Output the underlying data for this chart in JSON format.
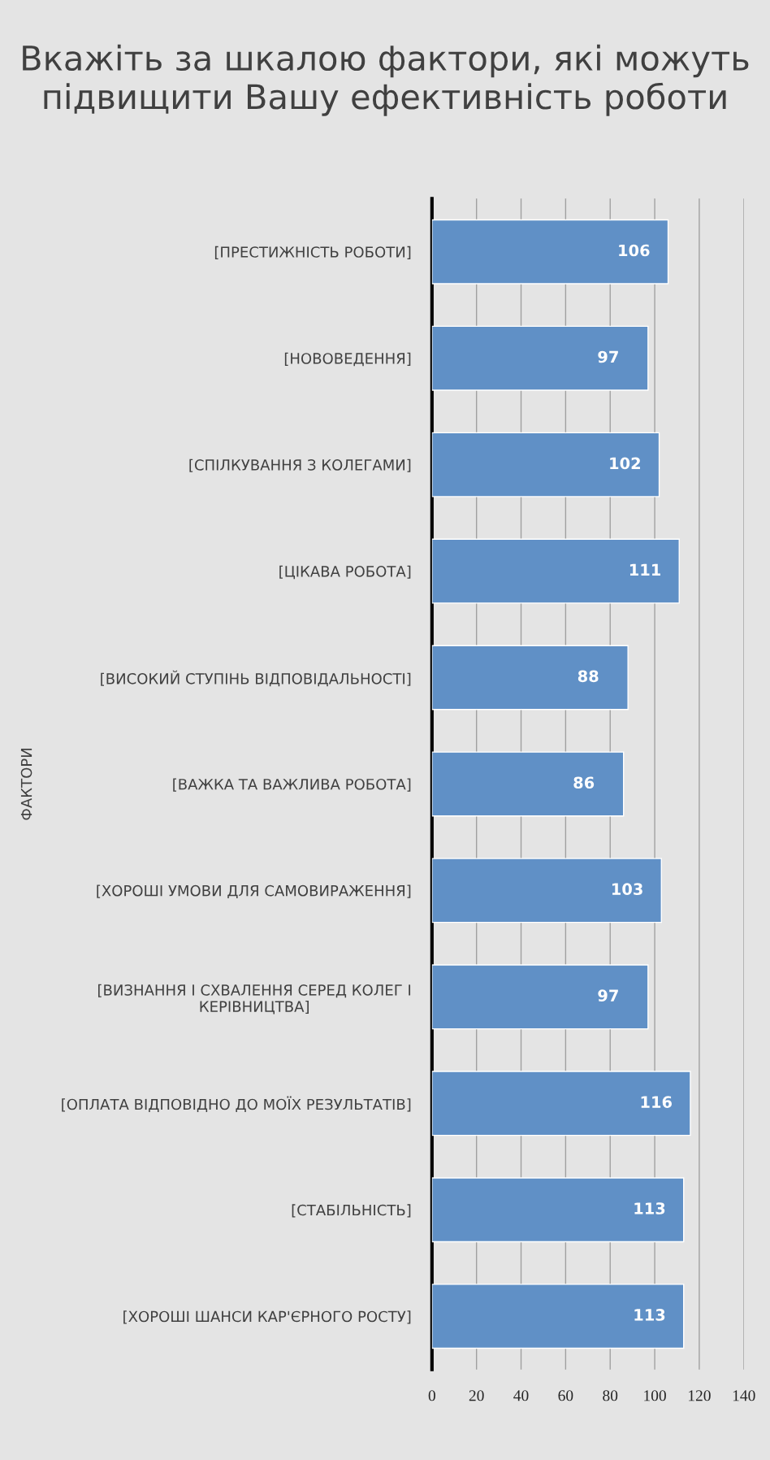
{
  "chart_data": {
    "type": "bar",
    "orientation": "horizontal",
    "title": "Вкажіть за шкалою фактори, які можуть підвищити Вашу ефективність роботи",
    "ylabel": "ФАКТОРИ",
    "categories": [
      "[ПРЕСТИЖНІСТЬ РОБОТИ]",
      "[НОВОВЕДЕННЯ]",
      "[СПІЛКУВАННЯ З КОЛЕГАМИ]",
      "[ЦІКАВА РОБОТА]",
      "[ВИСОКИЙ СТУПІНЬ ВІДПОВІДАЛЬНОСТІ]",
      "[ВАЖКА ТА ВАЖЛИВА РОБОТА]",
      "[ХОРОШІ УМОВИ ДЛЯ САМОВИРАЖЕННЯ]",
      "[ВИЗНАННЯ І СХВАЛЕННЯ СЕРЕД КОЛЕГ І КЕРІВНИЦТВА]",
      "[ОПЛАТА ВІДПОВІДНО ДО МОЇХ РЕЗУЛЬТАТІВ]",
      "[СТАБІЛЬНІСТЬ]",
      "[ХОРОШІ ШАНСИ КАР'ЄРНОГО РОСТУ]"
    ],
    "values": [
      106,
      97,
      102,
      111,
      88,
      86,
      103,
      97,
      116,
      113,
      113
    ],
    "color": "#6090c6",
    "xlim": [
      0,
      140
    ],
    "xticks": [
      0,
      20,
      40,
      60,
      80,
      100,
      120,
      140
    ],
    "grid": "x",
    "data_labels": true
  }
}
